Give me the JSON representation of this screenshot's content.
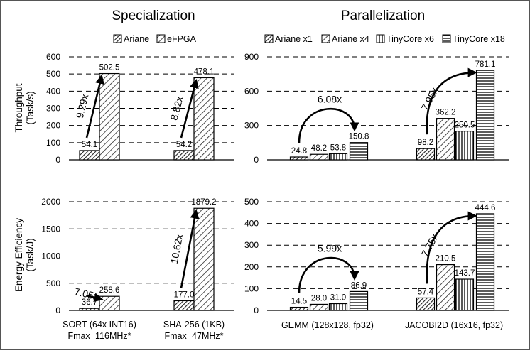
{
  "titles": {
    "left": "Specialization",
    "right": "Parallelization"
  },
  "legends": {
    "left": [
      "Ariane",
      "eFPGA"
    ],
    "right": [
      "Ariane x1",
      "Ariane x4",
      "TinyCore x6",
      "TinyCore x18"
    ]
  },
  "ylabels": {
    "top": [
      "Throughput",
      "(Task/s)"
    ],
    "bottom": [
      "Energy Efficiency",
      "(Task/J)"
    ]
  },
  "xlabels": {
    "left": [
      [
        "SORT (64x INT16)",
        "Fmax=116MHz*"
      ],
      [
        "SHA-256 (1KB)",
        "Fmax=47MHz*"
      ]
    ],
    "right": [
      "GEMM (128x128, fp32)",
      "JACOBI2D (16x16, fp32)"
    ]
  },
  "chart_data": [
    {
      "type": "bar",
      "panel": "Specialization - Throughput",
      "categories": [
        "SORT (64x INT16) Fmax=116MHz*",
        "SHA-256 (1KB) Fmax=47MHz*"
      ],
      "series": [
        {
          "name": "Ariane",
          "values": [
            54.1,
            54.2
          ]
        },
        {
          "name": "eFPGA",
          "values": [
            502.5,
            478.1
          ]
        }
      ],
      "data_labels": [
        [
          "54.1",
          "502.5"
        ],
        [
          "54.2",
          "478.1"
        ]
      ],
      "ylabel": "Throughput (Task/s)",
      "ylim": [
        0,
        600
      ],
      "yticks": [
        0,
        100,
        200,
        300,
        400,
        500,
        600
      ],
      "grid": "dashed horizontal",
      "annotations": [
        "9.29x",
        "8.82x"
      ]
    },
    {
      "type": "bar",
      "panel": "Parallelization - Throughput",
      "categories": [
        "GEMM (128x128, fp32)",
        "JACOBI2D (16x16, fp32)"
      ],
      "series": [
        {
          "name": "Ariane x1",
          "values": [
            24.8,
            98.2
          ]
        },
        {
          "name": "Ariane x4",
          "values": [
            48.2,
            362.2
          ]
        },
        {
          "name": "TinyCore x6",
          "values": [
            53.8,
            250.5
          ]
        },
        {
          "name": "TinyCore x18",
          "values": [
            150.8,
            781.1
          ]
        }
      ],
      "data_labels": [
        [
          "24.8",
          "48.2",
          "53.8",
          "150.8"
        ],
        [
          "98.2",
          "362.2",
          "250.5",
          "781.1"
        ]
      ],
      "ylim": [
        0,
        900
      ],
      "yticks": [
        0,
        300,
        600,
        900
      ],
      "grid": "dashed horizontal",
      "annotations": [
        "6.08x",
        "7.95x"
      ]
    },
    {
      "type": "bar",
      "panel": "Specialization - Energy Efficiency",
      "categories": [
        "SORT (64x INT16) Fmax=116MHz*",
        "SHA-256 (1KB) Fmax=47MHz*"
      ],
      "series": [
        {
          "name": "Ariane",
          "values": [
            36.7,
            177.0
          ]
        },
        {
          "name": "eFPGA",
          "values": [
            258.6,
            1879.2
          ]
        }
      ],
      "data_labels": [
        [
          "36.7",
          "258.6"
        ],
        [
          "177.0",
          "1879.2"
        ]
      ],
      "ylabel": "Energy Efficiency (Task/J)",
      "ylim": [
        0,
        2000
      ],
      "yticks": [
        0,
        500,
        1000,
        1500,
        2000
      ],
      "grid": "dashed horizontal",
      "annotations": [
        "7.05x",
        "10.62x"
      ]
    },
    {
      "type": "bar",
      "panel": "Parallelization - Energy Efficiency",
      "categories": [
        "GEMM (128x128, fp32)",
        "JACOBI2D (16x16, fp32)"
      ],
      "series": [
        {
          "name": "Ariane x1",
          "values": [
            14.5,
            57.4
          ]
        },
        {
          "name": "Ariane x4",
          "values": [
            28.0,
            210.5
          ]
        },
        {
          "name": "TinyCore x6",
          "values": [
            31.0,
            143.7
          ]
        },
        {
          "name": "TinyCore x18",
          "values": [
            86.9,
            444.6
          ]
        }
      ],
      "data_labels": [
        [
          "14.5",
          "28.0",
          "31.0",
          "86.9"
        ],
        [
          "57.4",
          "210.5",
          "143.7",
          "444.6"
        ]
      ],
      "ylim": [
        0,
        500
      ],
      "yticks": [
        0,
        100,
        200,
        300,
        400,
        500
      ],
      "grid": "dashed horizontal",
      "annotations": [
        "5.99x",
        "7.75x"
      ]
    }
  ]
}
